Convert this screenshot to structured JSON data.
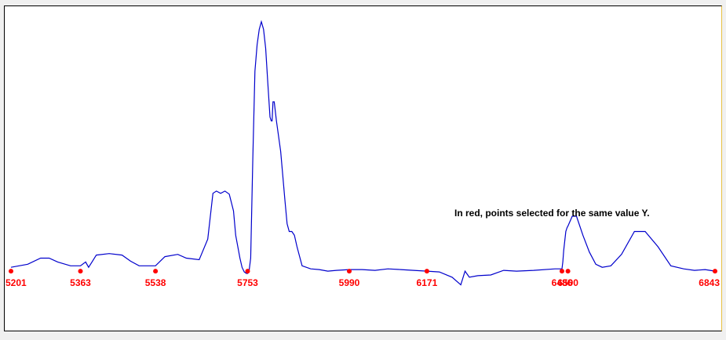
{
  "chart_data": {
    "type": "line",
    "title": "",
    "xlabel": "",
    "ylabel": "",
    "annotation": "In red, points selected for the same value Y.",
    "series": [
      {
        "color": "#0000cc",
        "x": [
          5201,
          5240,
          5270,
          5290,
          5310,
          5340,
          5363,
          5375,
          5382,
          5390,
          5400,
          5430,
          5460,
          5480,
          5500,
          5520,
          5538,
          5560,
          5590,
          5610,
          5640,
          5660,
          5672,
          5680,
          5690,
          5700,
          5710,
          5720,
          5725,
          5735,
          5740,
          5745,
          5750,
          5753,
          5756,
          5760,
          5765,
          5770,
          5775,
          5780,
          5785,
          5790,
          5795,
          5800,
          5805,
          5808,
          5810,
          5812,
          5815,
          5820,
          5830,
          5840,
          5845,
          5850,
          5856,
          5862,
          5868,
          5880,
          5900,
          5920,
          5940,
          5960,
          5990,
          6020,
          6050,
          6080,
          6110,
          6140,
          6171,
          6200,
          6230,
          6250,
          6260,
          6270,
          6290,
          6320,
          6350,
          6380,
          6420,
          6470,
          6486,
          6488,
          6490,
          6495,
          6498,
          6500,
          6510,
          6520,
          6535,
          6550,
          6565,
          6580,
          6600,
          6625,
          6655,
          6680,
          6710,
          6740,
          6770,
          6795,
          6820,
          6843
        ],
        "y": [
          8,
          12,
          20,
          20,
          15,
          10,
          10,
          15,
          8,
          15,
          24,
          26,
          24,
          16,
          10,
          10,
          10,
          22,
          25,
          20,
          18,
          45,
          105,
          108,
          105,
          108,
          104,
          82,
          50,
          20,
          8,
          2,
          0,
          0,
          2,
          20,
          150,
          265,
          300,
          320,
          330,
          320,
          295,
          250,
          205,
          200,
          200,
          225,
          225,
          200,
          160,
          95,
          65,
          55,
          55,
          50,
          35,
          10,
          6,
          5,
          3,
          4,
          5,
          5,
          4,
          6,
          5,
          4,
          3,
          2,
          -5,
          -15,
          3,
          -5,
          -3,
          -2,
          4,
          3,
          4,
          6,
          6,
          15,
          30,
          55,
          60,
          62,
          75,
          75,
          50,
          28,
          12,
          8,
          10,
          25,
          55,
          55,
          35,
          10,
          6,
          4,
          5,
          3
        ]
      }
    ],
    "selected_points": {
      "color": "#ff0000",
      "x_labels": [
        "5201",
        "5363",
        "5538",
        "5753",
        "5990",
        "6171",
        "6486",
        "6500",
        "6843"
      ],
      "y": [
        3,
        3,
        3,
        3,
        3,
        3,
        3,
        3,
        3
      ]
    },
    "xlim": [
      5201,
      6843
    ],
    "ylim": [
      -38,
      340
    ]
  }
}
